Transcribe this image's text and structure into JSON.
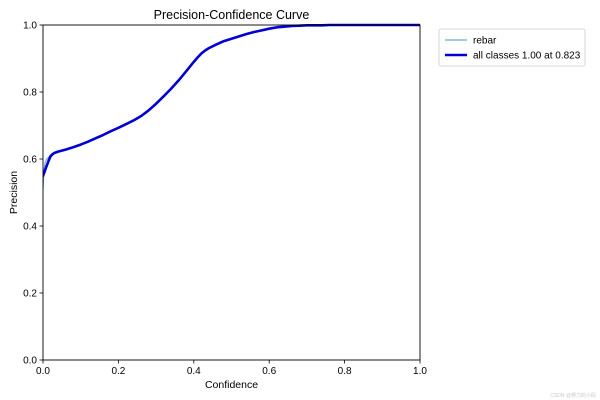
{
  "chart_data": {
    "type": "line",
    "title": "Precision-Confidence Curve",
    "xlabel": "Confidence",
    "ylabel": "Precision",
    "xlim": [
      0,
      1
    ],
    "ylim": [
      0,
      1
    ],
    "xticks": [
      0.0,
      0.2,
      0.4,
      0.6,
      0.8,
      1.0
    ],
    "xtick_labels": [
      "0.0",
      "0.2",
      "0.4",
      "0.6",
      "0.8",
      "1.0"
    ],
    "yticks": [
      0.0,
      0.2,
      0.4,
      0.6,
      0.8,
      1.0
    ],
    "ytick_labels": [
      "0.0",
      "0.2",
      "0.4",
      "0.6",
      "0.8",
      "1.0"
    ],
    "grid": false,
    "legend_position": "outside-top-right",
    "series": [
      {
        "name": "rebar",
        "color": "#6aa9d0",
        "x": [
          0.0,
          0.003,
          0.006,
          0.01,
          0.015,
          0.02,
          0.025,
          0.03,
          0.04,
          0.06,
          0.08,
          0.1,
          0.12,
          0.14,
          0.16,
          0.18,
          0.2,
          0.22,
          0.24,
          0.26,
          0.28,
          0.3,
          0.32,
          0.34,
          0.36,
          0.38,
          0.4,
          0.41,
          0.42,
          0.43,
          0.44,
          0.46,
          0.48,
          0.5,
          0.52,
          0.54,
          0.56,
          0.58,
          0.6,
          0.62,
          0.64,
          0.66,
          0.68,
          0.7,
          0.72,
          0.74,
          0.76,
          0.78,
          0.8,
          0.823,
          0.85,
          0.9,
          0.95,
          1.0
        ],
        "y": [
          0.51,
          0.57,
          0.59,
          0.6,
          0.605,
          0.612,
          0.615,
          0.618,
          0.622,
          0.628,
          0.635,
          0.643,
          0.652,
          0.662,
          0.672,
          0.683,
          0.693,
          0.704,
          0.715,
          0.728,
          0.745,
          0.765,
          0.787,
          0.81,
          0.835,
          0.862,
          0.89,
          0.903,
          0.915,
          0.924,
          0.931,
          0.942,
          0.952,
          0.959,
          0.966,
          0.973,
          0.979,
          0.984,
          0.989,
          0.993,
          0.995,
          0.997,
          0.998,
          0.999,
          0.999,
          0.999,
          1.0,
          1.0,
          1.0,
          1.0,
          1.0,
          1.0,
          1.0,
          1.0
        ]
      },
      {
        "name": "all classes 1.00 at 0.823",
        "color": "#0000d4",
        "x": [
          0.0,
          0.003,
          0.006,
          0.01,
          0.015,
          0.02,
          0.025,
          0.03,
          0.04,
          0.06,
          0.08,
          0.1,
          0.12,
          0.14,
          0.16,
          0.18,
          0.2,
          0.22,
          0.24,
          0.26,
          0.28,
          0.3,
          0.32,
          0.34,
          0.36,
          0.38,
          0.4,
          0.41,
          0.42,
          0.43,
          0.44,
          0.46,
          0.48,
          0.5,
          0.52,
          0.54,
          0.56,
          0.58,
          0.6,
          0.62,
          0.64,
          0.66,
          0.68,
          0.7,
          0.72,
          0.74,
          0.76,
          0.78,
          0.8,
          0.823,
          0.85,
          0.9,
          0.95,
          1.0
        ],
        "y": [
          0.55,
          0.558,
          0.568,
          0.58,
          0.595,
          0.608,
          0.614,
          0.618,
          0.622,
          0.628,
          0.635,
          0.643,
          0.652,
          0.662,
          0.672,
          0.683,
          0.693,
          0.704,
          0.715,
          0.728,
          0.745,
          0.765,
          0.787,
          0.81,
          0.835,
          0.862,
          0.89,
          0.903,
          0.915,
          0.924,
          0.931,
          0.942,
          0.952,
          0.959,
          0.966,
          0.973,
          0.979,
          0.984,
          0.989,
          0.993,
          0.995,
          0.997,
          0.998,
          0.999,
          0.999,
          0.999,
          1.0,
          1.0,
          1.0,
          1.0,
          1.0,
          1.0,
          1.0,
          1.0
        ]
      }
    ]
  },
  "watermark": "CSDN @努力的小码"
}
